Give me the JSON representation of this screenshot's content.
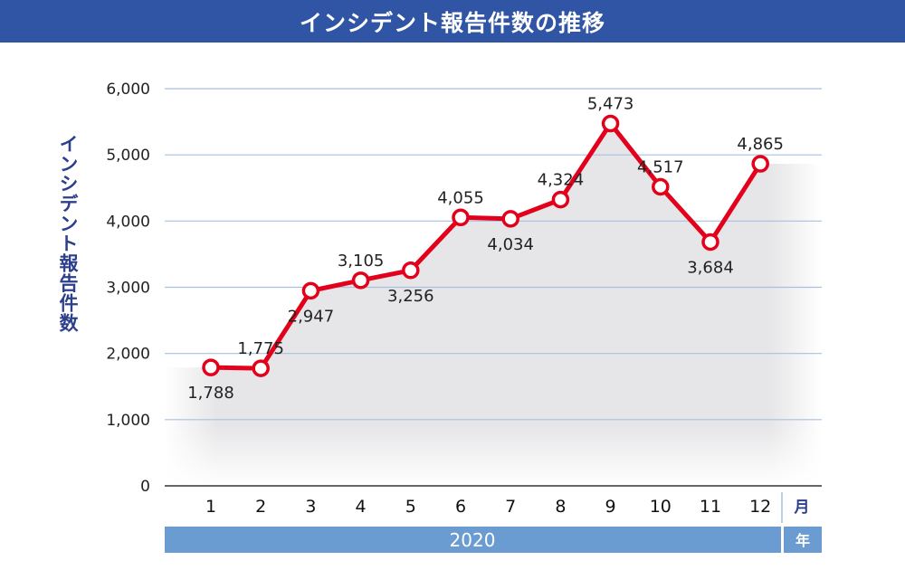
{
  "title": "インシデント報告件数の推移",
  "colors": {
    "title_bg": "#2f55a4",
    "line": "#e3001b",
    "grid": "#a9bfe0",
    "area": "#e6e6e8",
    "year_bar": "#6a9bd1"
  },
  "chart_data": {
    "type": "line",
    "title": "インシデント報告件数の推移",
    "ylabel": "インシデント報告件数",
    "xunit": "月",
    "year": "2020",
    "year_unit": "年",
    "categories": [
      "1",
      "2",
      "3",
      "4",
      "5",
      "6",
      "7",
      "8",
      "9",
      "10",
      "11",
      "12"
    ],
    "values": [
      1788,
      1775,
      2947,
      3105,
      3256,
      4055,
      4034,
      4324,
      5473,
      4517,
      3684,
      4865
    ],
    "value_labels": [
      "1,788",
      "1,775",
      "2,947",
      "3,105",
      "3,256",
      "4,055",
      "4,034",
      "4,324",
      "5,473",
      "4,517",
      "3,684",
      "4,865"
    ],
    "label_positions": [
      "below",
      "above",
      "below",
      "above",
      "below",
      "above",
      "below",
      "above",
      "above",
      "above",
      "below",
      "above"
    ],
    "ylim": [
      0,
      6000
    ],
    "yticks": [
      0,
      1000,
      2000,
      3000,
      4000,
      5000,
      6000
    ],
    "ytick_labels": [
      "0",
      "1,000",
      "2,000",
      "3,000",
      "4,000",
      "5,000",
      "6,000"
    ],
    "grid": true
  }
}
